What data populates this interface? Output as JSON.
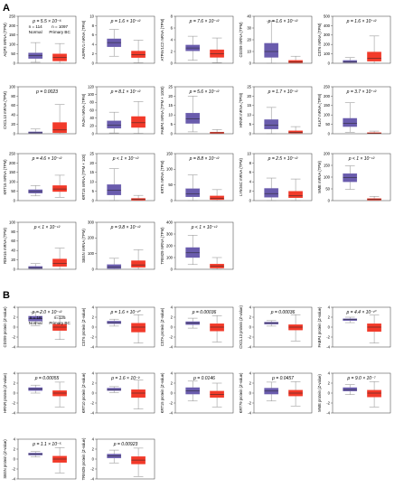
{
  "figure": {
    "panel_a": {
      "label": "A"
    },
    "panel_b": {
      "label": "B"
    }
  },
  "colors": {
    "normal": "#6a5cad",
    "tumor": "#f23a2a",
    "whisker": "#8a8a8a",
    "median": "#222222",
    "axis": "#333333"
  },
  "chart_data": [
    {
      "type": "box",
      "panel": "A",
      "ylabel": "AQP3 mRNA (TPM)",
      "pvalue": "p = 5.5 × 10⁻⁶",
      "ylim": [
        0,
        250
      ],
      "yticks": [
        0,
        50,
        100,
        150,
        200,
        250
      ],
      "legend": {
        "normal": "Normal",
        "normal_n": "n = 114",
        "tumor": "Primary BC",
        "tumor_n": "n = 1097"
      },
      "groups": [
        {
          "group": "Normal",
          "min": 5,
          "q1": 25,
          "median": 40,
          "q3": 55,
          "max": 110
        },
        {
          "group": "Primary BC",
          "min": 0,
          "q1": 12,
          "median": 30,
          "q3": 50,
          "max": 105
        }
      ]
    },
    {
      "type": "box",
      "panel": "A",
      "ylabel": "ASPRV1 mRNA (TPM)",
      "pvalue": "p = 1.6 × 10⁻¹²",
      "ylim": [
        0,
        10
      ],
      "yticks": [
        0,
        2,
        4,
        6,
        8,
        10
      ],
      "groups": [
        {
          "group": "Normal",
          "min": 1.5,
          "q1": 3.5,
          "median": 4.4,
          "q3": 5.2,
          "max": 7.2
        },
        {
          "group": "Primary BC",
          "min": 0.1,
          "q1": 1.2,
          "median": 1.8,
          "q3": 2.6,
          "max": 4.9
        }
      ]
    },
    {
      "type": "box",
      "panel": "A",
      "ylabel": "ATP6V1C2 mRNA (TPM)",
      "pvalue": "p = 7.6 × 10⁻¹²",
      "ylim": [
        0,
        8
      ],
      "yticks": [
        0,
        2,
        4,
        6,
        8
      ],
      "groups": [
        {
          "group": "Normal",
          "min": 0.5,
          "q1": 2.1,
          "median": 2.6,
          "q3": 3.1,
          "max": 4.6
        },
        {
          "group": "Primary BC",
          "min": 0.1,
          "q1": 1.0,
          "median": 1.6,
          "q3": 2.3,
          "max": 4.3
        }
      ]
    },
    {
      "type": "box",
      "panel": "A",
      "ylabel": "CD209 mRNA (TPM)",
      "pvalue": "p = 1.6 × 10⁻¹²",
      "ylim": [
        0,
        40
      ],
      "yticks": [
        0,
        10,
        20,
        30,
        40
      ],
      "groups": [
        {
          "group": "Normal",
          "min": 0,
          "q1": 5,
          "median": 10,
          "q3": 17,
          "max": 36
        },
        {
          "group": "Primary BC",
          "min": 0,
          "q1": 0.4,
          "median": 1.2,
          "q3": 2.5,
          "max": 6
        }
      ]
    },
    {
      "type": "box",
      "panel": "A",
      "ylabel": "CST6 mRNA (TPM)",
      "pvalue": "p = 1.6 × 10⁻¹²",
      "ylim": [
        0,
        500
      ],
      "yticks": [
        0,
        100,
        200,
        300,
        400,
        500
      ],
      "groups": [
        {
          "group": "Normal",
          "min": 0,
          "q1": 8,
          "median": 16,
          "q3": 30,
          "max": 60
        },
        {
          "group": "Primary BC",
          "min": 0,
          "q1": 22,
          "median": 55,
          "q3": 120,
          "max": 290
        }
      ]
    },
    {
      "type": "box",
      "panel": "A",
      "ylabel": "CXCL13 mRNA (TPM)",
      "pvalue": "p = 0.0023",
      "ylim": [
        0,
        100
      ],
      "yticks": [
        0,
        20,
        40,
        60,
        80,
        100
      ],
      "groups": [
        {
          "group": "Normal",
          "min": 0,
          "q1": 1,
          "median": 2,
          "q3": 4,
          "max": 10
        },
        {
          "group": "Primary BC",
          "min": 0,
          "q1": 2,
          "median": 8,
          "q3": 24,
          "max": 62
        }
      ]
    },
    {
      "type": "box",
      "panel": "A",
      "ylabel": "FA2H mRNA (TPM)",
      "pvalue": "p = 8.1 × 10⁻¹²",
      "ylim": [
        0,
        120
      ],
      "yticks": [
        0,
        20,
        40,
        60,
        80,
        100,
        120
      ],
      "groups": [
        {
          "group": "Normal",
          "min": 2,
          "q1": 14,
          "median": 22,
          "q3": 33,
          "max": 55
        },
        {
          "group": "Primary BC",
          "min": 1,
          "q1": 16,
          "median": 28,
          "q3": 44,
          "max": 82
        }
      ]
    },
    {
      "type": "box",
      "panel": "A",
      "ylabel": "FABP4 mRNA (TPM × 1000)",
      "pvalue": "p = 5.6 × 10⁻¹²",
      "ylim": [
        0,
        25
      ],
      "yticks": [
        0,
        5,
        10,
        15,
        20,
        25
      ],
      "groups": [
        {
          "group": "Normal",
          "min": 1,
          "q1": 5.5,
          "median": 8,
          "q3": 11,
          "max": 20
        },
        {
          "group": "Primary BC",
          "min": 0,
          "q1": 0.2,
          "median": 0.5,
          "q3": 0.9,
          "max": 2.2
        }
      ]
    },
    {
      "type": "box",
      "panel": "A",
      "ylabel": "HRNR mRNA (TPM)",
      "pvalue": "p = 1.7 × 10⁻¹²",
      "ylim": [
        0,
        25
      ],
      "yticks": [
        0,
        5,
        10,
        15,
        20,
        25
      ],
      "groups": [
        {
          "group": "Normal",
          "min": 0,
          "q1": 2.5,
          "median": 4.5,
          "q3": 7.5,
          "max": 14
        },
        {
          "group": "Primary BC",
          "min": 0,
          "q1": 0.3,
          "median": 0.8,
          "q3": 1.6,
          "max": 3.8
        }
      ]
    },
    {
      "type": "box",
      "panel": "A",
      "ylabel": "KLK7 mRNA (TPM)",
      "pvalue": "p = 3.7 × 10⁻¹²",
      "ylim": [
        0,
        250
      ],
      "yticks": [
        0,
        50,
        100,
        150,
        200,
        250
      ],
      "groups": [
        {
          "group": "Normal",
          "min": 8,
          "q1": 38,
          "median": 55,
          "q3": 82,
          "max": 165
        },
        {
          "group": "Primary BC",
          "min": 0,
          "q1": 1,
          "median": 3,
          "q3": 6,
          "max": 14
        }
      ]
    },
    {
      "type": "box",
      "panel": "A",
      "ylabel": "KRT15 mRNA (TPM)",
      "pvalue": "p = 4.6 × 10⁻¹²",
      "ylim": [
        0,
        250
      ],
      "yticks": [
        0,
        50,
        100,
        150,
        200,
        250
      ],
      "groups": [
        {
          "group": "Normal",
          "min": 25,
          "q1": 40,
          "median": 48,
          "q3": 58,
          "max": 80
        },
        {
          "group": "Primary BC",
          "min": 18,
          "q1": 48,
          "median": 62,
          "q3": 80,
          "max": 135
        }
      ]
    },
    {
      "type": "box",
      "panel": "A",
      "ylabel": "KRT15 mRNA (TPM × 100)",
      "pvalue": "p < 1 × 10⁻¹²",
      "ylim": [
        0,
        25
      ],
      "yticks": [
        0,
        5,
        10,
        15,
        20,
        25
      ],
      "groups": [
        {
          "group": "Normal",
          "min": 0,
          "q1": 3,
          "median": 5.5,
          "q3": 8.5,
          "max": 17
        },
        {
          "group": "Primary BC",
          "min": 0,
          "q1": 0.2,
          "median": 0.6,
          "q3": 1.2,
          "max": 2.8
        }
      ]
    },
    {
      "type": "box",
      "panel": "A",
      "ylabel": "KRT6 mRNA (TPM)",
      "pvalue": "p = 8.8 × 10⁻¹²",
      "ylim": [
        0,
        150
      ],
      "yticks": [
        0,
        50,
        100,
        150
      ],
      "groups": [
        {
          "group": "Normal",
          "min": 0,
          "q1": 12,
          "median": 22,
          "q3": 38,
          "max": 82
        },
        {
          "group": "Primary BC",
          "min": 0,
          "q1": 3,
          "median": 8,
          "q3": 15,
          "max": 35
        }
      ]
    },
    {
      "type": "box",
      "panel": "A",
      "ylabel": "LY6G6C mRNA (TPM)",
      "pvalue": "p = 2.5 × 10⁻¹²",
      "ylim": [
        0,
        10
      ],
      "yticks": [
        0,
        2,
        4,
        6,
        8,
        10
      ],
      "groups": [
        {
          "group": "Normal",
          "min": 0,
          "q1": 0.7,
          "median": 1.5,
          "q3": 2.6,
          "max": 4.8
        },
        {
          "group": "Primary BC",
          "min": 0,
          "q1": 0.6,
          "median": 1.0,
          "q3": 2.0,
          "max": 4.6
        }
      ]
    },
    {
      "type": "box",
      "panel": "A",
      "ylabel": "MME mRNA (TPM)",
      "pvalue": "p < 1 × 10⁻¹²",
      "ylim": [
        0,
        200
      ],
      "yticks": [
        0,
        50,
        100,
        150,
        200
      ],
      "groups": [
        {
          "group": "Normal",
          "min": 48,
          "q1": 80,
          "median": 98,
          "q3": 115,
          "max": 148
        },
        {
          "group": "Primary BC",
          "min": 0,
          "q1": 2,
          "median": 5,
          "q3": 9,
          "max": 18
        }
      ]
    },
    {
      "type": "box",
      "panel": "A",
      "ylabel": "RDH16 mRNA (TPM)",
      "pvalue": "p < 1 × 10⁻¹²",
      "ylim": [
        0,
        100
      ],
      "yticks": [
        0,
        20,
        40,
        60,
        80,
        100
      ],
      "groups": [
        {
          "group": "Normal",
          "min": 0,
          "q1": 1.5,
          "median": 3.5,
          "q3": 6,
          "max": 12
        },
        {
          "group": "Primary BC",
          "min": 0,
          "q1": 6,
          "median": 12,
          "q3": 22,
          "max": 45
        }
      ]
    },
    {
      "type": "box",
      "panel": "A",
      "ylabel": "SBSN mRNA (TPM)",
      "pvalue": "p = 9.8 × 10⁻¹²",
      "ylim": [
        0,
        300
      ],
      "yticks": [
        0,
        100,
        200,
        300
      ],
      "groups": [
        {
          "group": "Normal",
          "min": 0,
          "q1": 5,
          "median": 14,
          "q3": 30,
          "max": 70
        },
        {
          "group": "Primary BC",
          "min": 0,
          "q1": 12,
          "median": 28,
          "q3": 55,
          "max": 125
        }
      ]
    },
    {
      "type": "box",
      "panel": "A",
      "ylabel": "TRIM29 mRNA (TPM)",
      "pvalue": "p < 1 × 10⁻¹²",
      "ylim": [
        0,
        400
      ],
      "yticks": [
        0,
        100,
        200,
        300,
        400
      ],
      "groups": [
        {
          "group": "Normal",
          "min": 40,
          "q1": 100,
          "median": 140,
          "q3": 185,
          "max": 290
        },
        {
          "group": "Primary BC",
          "min": 0,
          "q1": 10,
          "median": 25,
          "q3": 45,
          "max": 100
        }
      ]
    },
    {
      "type": "box",
      "panel": "B",
      "ylabel": "CD209 protein (Z-value)",
      "pvalue": "p = 2.0 × 10⁻¹²",
      "ylim": [
        -4,
        4
      ],
      "yticks": [
        -4,
        -2,
        0,
        2,
        4
      ],
      "legend": {
        "normal": "Normal",
        "normal_n": "n = 18",
        "tumor": "Primary BC",
        "tumor_n": "n=125"
      },
      "groups": [
        {
          "group": "Normal",
          "min": 0.3,
          "q1": 1.2,
          "median": 1.7,
          "q3": 2.2,
          "max": 3.0
        },
        {
          "group": "Primary BC",
          "min": -2.5,
          "q1": -0.7,
          "median": 0.0,
          "q3": 0.6,
          "max": 2.3
        }
      ]
    },
    {
      "type": "box",
      "panel": "B",
      "ylabel": "CST6 protein (Z-value)",
      "pvalue": "p = 1.6 × 10⁻¹⁰",
      "ylim": [
        -4,
        4
      ],
      "yticks": [
        -4,
        -2,
        0,
        2,
        4
      ],
      "groups": [
        {
          "group": "Normal",
          "min": 0.2,
          "q1": 0.7,
          "median": 0.9,
          "q3": 1.2,
          "max": 1.6
        },
        {
          "group": "Primary BC",
          "min": -3.2,
          "q1": -1.0,
          "median": 0.0,
          "q3": 0.8,
          "max": 2.5
        }
      ]
    },
    {
      "type": "box",
      "panel": "B",
      "ylabel": "CSTA protein (Z-value)",
      "pvalue": "p = 0.00036",
      "ylim": [
        -4,
        4
      ],
      "yticks": [
        -4,
        -2,
        0,
        2,
        4
      ],
      "groups": [
        {
          "group": "Normal",
          "min": -0.2,
          "q1": 0.5,
          "median": 0.8,
          "q3": 1.1,
          "max": 1.8
        },
        {
          "group": "Primary BC",
          "min": -3.0,
          "q1": -0.8,
          "median": 0.0,
          "q3": 0.7,
          "max": 2.3
        }
      ]
    },
    {
      "type": "box",
      "panel": "B",
      "ylabel": "CXCL13 protein (Z-value)",
      "pvalue": "p = 0.00036",
      "ylim": [
        -4,
        4
      ],
      "yticks": [
        -4,
        -2,
        0,
        2,
        4
      ],
      "groups": [
        {
          "group": "Normal",
          "min": 0.2,
          "q1": 0.6,
          "median": 0.8,
          "q3": 1.0,
          "max": 1.3
        },
        {
          "group": "Primary BC",
          "min": -2.8,
          "q1": -0.6,
          "median": 0.0,
          "q3": 0.5,
          "max": 2.5
        }
      ]
    },
    {
      "type": "box",
      "panel": "B",
      "ylabel": "FABP4 protein (Z-value)",
      "pvalue": "p = 4.4 × 10⁻¹⁰",
      "ylim": [
        -4,
        4
      ],
      "yticks": [
        -4,
        -2,
        0,
        2,
        4
      ],
      "groups": [
        {
          "group": "Normal",
          "min": 0.9,
          "q1": 1.3,
          "median": 1.5,
          "q3": 1.7,
          "max": 2.0
        },
        {
          "group": "Primary BC",
          "min": -3.2,
          "q1": -0.9,
          "median": 0.0,
          "q3": 0.7,
          "max": 2.4
        }
      ]
    },
    {
      "type": "box",
      "panel": "B",
      "ylabel": "HRNR protein (Z-value)",
      "pvalue": "p = 0.00055",
      "ylim": [
        -4,
        4
      ],
      "yticks": [
        -4,
        -2,
        0,
        2,
        4
      ],
      "groups": [
        {
          "group": "Normal",
          "min": 0.0,
          "q1": 0.5,
          "median": 0.8,
          "q3": 1.1,
          "max": 1.6
        },
        {
          "group": "Primary BC",
          "min": -2.8,
          "q1": -0.6,
          "median": 0.0,
          "q3": 0.5,
          "max": 2.2
        }
      ]
    },
    {
      "type": "box",
      "panel": "B",
      "ylabel": "KRT10 protein (Z-value)",
      "pvalue": "p = 1.6 × 10⁻⁹",
      "ylim": [
        -4,
        4
      ],
      "yticks": [
        -4,
        -2,
        0,
        2,
        4
      ],
      "groups": [
        {
          "group": "Normal",
          "min": 0.1,
          "q1": 0.5,
          "median": 0.7,
          "q3": 1.0,
          "max": 1.3
        },
        {
          "group": "Primary BC",
          "min": -3.2,
          "q1": -0.9,
          "median": 0.0,
          "q3": 0.7,
          "max": 2.6
        }
      ]
    },
    {
      "type": "box",
      "panel": "B",
      "ylabel": "KRT15 protein (Z-value)",
      "pvalue": "p = 0.0146",
      "ylim": [
        -4,
        4
      ],
      "yticks": [
        -4,
        -2,
        0,
        2,
        4
      ],
      "groups": [
        {
          "group": "Normal",
          "min": -1.6,
          "q1": -0.2,
          "median": 0.5,
          "q3": 1.1,
          "max": 2.4
        },
        {
          "group": "Primary BC",
          "min": -2.8,
          "q1": -0.9,
          "median": -0.3,
          "q3": 0.4,
          "max": 2.0
        }
      ]
    },
    {
      "type": "box",
      "panel": "B",
      "ylabel": "KRT79 protein (Z-value)",
      "pvalue": "p = 0.0457",
      "ylim": [
        -4,
        4
      ],
      "yticks": [
        -4,
        -2,
        0,
        2,
        4
      ],
      "groups": [
        {
          "group": "Normal",
          "min": -1.6,
          "q1": -0.2,
          "median": 0.4,
          "q3": 1.0,
          "max": 2.2
        },
        {
          "group": "Primary BC",
          "min": -2.6,
          "q1": -0.6,
          "median": 0.0,
          "q3": 0.6,
          "max": 2.3
        }
      ]
    },
    {
      "type": "box",
      "panel": "B",
      "ylabel": "MME protein (Z-value)",
      "pvalue": "p = 9.0 × 10⁻⁷",
      "ylim": [
        -4,
        4
      ],
      "yticks": [
        -4,
        -2,
        0,
        2,
        4
      ],
      "groups": [
        {
          "group": "Normal",
          "min": -0.3,
          "q1": 0.4,
          "median": 0.7,
          "q3": 1.1,
          "max": 1.7
        },
        {
          "group": "Primary BC",
          "min": -2.8,
          "q1": -0.8,
          "median": 0.0,
          "q3": 0.6,
          "max": 2.3
        }
      ]
    },
    {
      "type": "box",
      "panel": "B",
      "ylabel": "SBSN protein (Z-value)",
      "pvalue": "p = 1.1 × 10⁻⁵",
      "ylim": [
        -4,
        4
      ],
      "yticks": [
        -4,
        -2,
        0,
        2,
        4
      ],
      "groups": [
        {
          "group": "Normal",
          "min": 0.4,
          "q1": 0.8,
          "median": 1.0,
          "q3": 1.2,
          "max": 1.5
        },
        {
          "group": "Primary BC",
          "min": -2.8,
          "q1": -0.7,
          "median": 0.0,
          "q3": 0.6,
          "max": 2.3
        }
      ]
    },
    {
      "type": "box",
      "panel": "B",
      "ylabel": "TRIM29 protein (Z-value)",
      "pvalue": "p = 0.00923",
      "ylim": [
        -4,
        4
      ],
      "yticks": [
        -4,
        -2,
        0,
        2,
        4
      ],
      "groups": [
        {
          "group": "Normal",
          "min": -0.8,
          "q1": 0.2,
          "median": 0.6,
          "q3": 1.0,
          "max": 1.8
        },
        {
          "group": "Primary BC",
          "min": -3.5,
          "q1": -1.0,
          "median": -0.2,
          "q3": 0.5,
          "max": 2.2
        }
      ]
    }
  ]
}
